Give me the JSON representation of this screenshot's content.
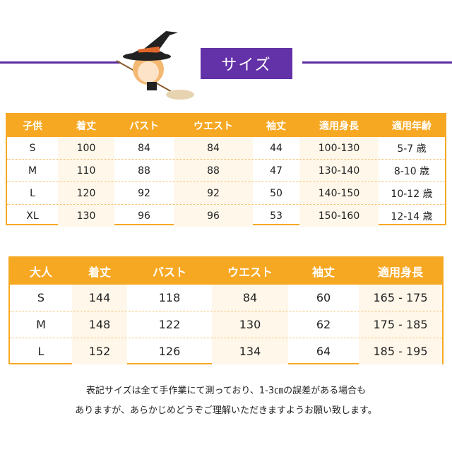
{
  "title": "サイズ",
  "colors": {
    "accent_orange": "#f7a823",
    "title_purple": "#6331a8"
  },
  "kids_table": {
    "headers": [
      "子供",
      "着丈",
      "バスト",
      "ウエスト",
      "袖丈",
      "適用身長",
      "適用年齢"
    ],
    "rows": [
      [
        "S",
        "100",
        "84",
        "84",
        "44",
        "100-130",
        "5-7 歳"
      ],
      [
        "M",
        "110",
        "88",
        "88",
        "47",
        "130-140",
        "8-10 歳"
      ],
      [
        "L",
        "120",
        "92",
        "92",
        "50",
        "140-150",
        "10-12 歳"
      ],
      [
        "XL",
        "130",
        "96",
        "96",
        "53",
        "150-160",
        "12-14 歳"
      ]
    ]
  },
  "adult_table": {
    "headers": [
      "大人",
      "着丈",
      "バスト",
      "ウエスト",
      "袖丈",
      "適用身長"
    ],
    "rows": [
      [
        "S",
        "144",
        "118",
        "84",
        "60",
        "165 - 175"
      ],
      [
        "M",
        "148",
        "122",
        "130",
        "62",
        "175 - 185"
      ],
      [
        "L",
        "152",
        "126",
        "134",
        "64",
        "185 - 195"
      ]
    ]
  },
  "notes": [
    "表記サイズは全て手作業にて測っており、1-3㎝の誤差がある場合も",
    "ありますが、あらかじめどうぞご理解いただきますようお願い致します。"
  ]
}
